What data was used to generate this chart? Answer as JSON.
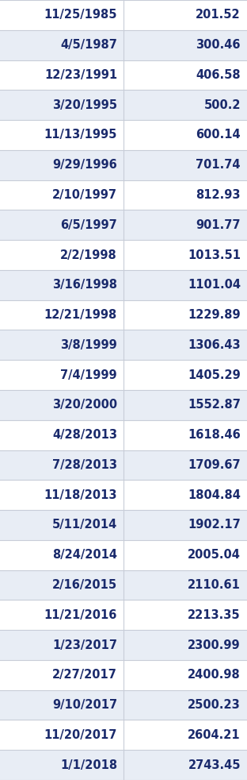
{
  "rows": [
    [
      "11/25/1985",
      "201.52"
    ],
    [
      "4/5/1987",
      "300.46"
    ],
    [
      "12/23/1991",
      "406.58"
    ],
    [
      "3/20/1995",
      "500.2"
    ],
    [
      "11/13/1995",
      "600.14"
    ],
    [
      "9/29/1996",
      "701.74"
    ],
    [
      "2/10/1997",
      "812.93"
    ],
    [
      "6/5/1997",
      "901.77"
    ],
    [
      "2/2/1998",
      "1013.51"
    ],
    [
      "3/16/1998",
      "1101.04"
    ],
    [
      "12/21/1998",
      "1229.89"
    ],
    [
      "3/8/1999",
      "1306.43"
    ],
    [
      "7/4/1999",
      "1405.29"
    ],
    [
      "3/20/2000",
      "1552.87"
    ],
    [
      "4/28/2013",
      "1618.46"
    ],
    [
      "7/28/2013",
      "1709.67"
    ],
    [
      "11/18/2013",
      "1804.84"
    ],
    [
      "5/11/2014",
      "1902.17"
    ],
    [
      "8/24/2014",
      "2005.04"
    ],
    [
      "2/16/2015",
      "2110.61"
    ],
    [
      "11/21/2016",
      "2213.35"
    ],
    [
      "1/23/2017",
      "2300.99"
    ],
    [
      "2/27/2017",
      "2400.98"
    ],
    [
      "9/10/2017",
      "2500.23"
    ],
    [
      "11/20/2017",
      "2604.21"
    ],
    [
      "1/1/2018",
      "2743.45"
    ]
  ],
  "row_bg_even": "#ffffff",
  "row_bg_odd": "#e8edf5",
  "border_color": "#c8cdd8",
  "text_color": "#1a2a6c",
  "font_size": 10.5,
  "col_split": 0.5,
  "fig_width": 3.12,
  "fig_height": 9.82,
  "dpi": 100
}
